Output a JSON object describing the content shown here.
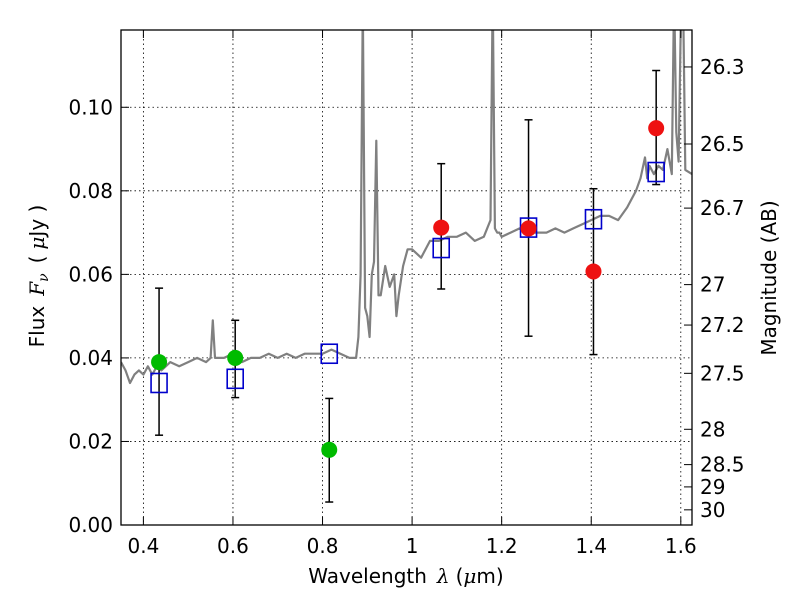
{
  "chart_data": {
    "type": "scatter",
    "xlabel": {
      "prefix": "Wavelength",
      "symbol": "λ",
      "unit_open": "(",
      "unit_mu": "μ",
      "unit_rest": "m)"
    },
    "ylabel": {
      "prefix": "Flux",
      "symbol": "F",
      "subscript": "ν",
      "unit_open": "(",
      "unit_mu": "μ",
      "unit_rest": "Jy )"
    },
    "y2label": "Magnitude (AB)",
    "xlim": [
      0.35,
      1.625
    ],
    "ylim": [
      0.0,
      0.1185
    ],
    "grid": true,
    "x_ticks": [
      {
        "value": 0.4,
        "label": "0.4"
      },
      {
        "value": 0.6,
        "label": "0.6"
      },
      {
        "value": 0.8,
        "label": "0.8"
      },
      {
        "value": 1.0,
        "label": "1"
      },
      {
        "value": 1.2,
        "label": "1.2"
      },
      {
        "value": 1.4,
        "label": "1.4"
      },
      {
        "value": 1.6,
        "label": "1.6"
      }
    ],
    "y_ticks": [
      {
        "value": 0.0,
        "label": "0.00"
      },
      {
        "value": 0.02,
        "label": "0.02"
      },
      {
        "value": 0.04,
        "label": "0.04"
      },
      {
        "value": 0.06,
        "label": "0.06"
      },
      {
        "value": 0.08,
        "label": "0.08"
      },
      {
        "value": 0.1,
        "label": "0.10"
      }
    ],
    "mag_ticks": [
      {
        "value": 26.3,
        "label": "26.3"
      },
      {
        "value": 26.5,
        "label": "26.5"
      },
      {
        "value": 26.7,
        "label": "26.7"
      },
      {
        "value": 27.0,
        "label": "27"
      },
      {
        "value": 27.2,
        "label": "27.2"
      },
      {
        "value": 27.5,
        "label": "27.5"
      },
      {
        "value": 28.0,
        "label": "28"
      },
      {
        "value": 28.5,
        "label": "28.5"
      },
      {
        "value": 29.0,
        "label": "29"
      },
      {
        "value": 30.0,
        "label": "30"
      }
    ],
    "colors": {
      "model_line": "#808080",
      "green_points": "#00bb00",
      "red_points": "#ee1111",
      "squares": "#0000cc",
      "errorbars": "#000000",
      "grid": "#000000"
    },
    "series": [
      {
        "kind": "model_spectrum",
        "x": [
          0.35,
          0.36,
          0.37,
          0.38,
          0.39,
          0.4,
          0.41,
          0.42,
          0.43,
          0.44,
          0.45,
          0.46,
          0.48,
          0.5,
          0.52,
          0.54,
          0.55,
          0.555,
          0.56,
          0.58,
          0.6,
          0.62,
          0.64,
          0.66,
          0.68,
          0.7,
          0.72,
          0.74,
          0.76,
          0.78,
          0.8,
          0.82,
          0.84,
          0.86,
          0.875,
          0.88,
          0.885,
          0.89,
          0.895,
          0.9,
          0.905,
          0.91,
          0.915,
          0.92,
          0.925,
          0.93,
          0.94,
          0.95,
          0.96,
          0.965,
          0.97,
          0.98,
          0.99,
          1.0,
          1.02,
          1.04,
          1.06,
          1.08,
          1.1,
          1.12,
          1.14,
          1.16,
          1.175,
          1.18,
          1.185,
          1.19,
          1.195,
          1.2,
          1.22,
          1.24,
          1.26,
          1.28,
          1.3,
          1.32,
          1.34,
          1.36,
          1.38,
          1.4,
          1.42,
          1.44,
          1.46,
          1.48,
          1.5,
          1.51,
          1.52,
          1.525,
          1.53,
          1.54,
          1.55,
          1.56,
          1.57,
          1.58,
          1.585,
          1.59,
          1.595,
          1.6,
          1.605,
          1.61,
          1.625
        ],
        "y": [
          0.039,
          0.037,
          0.034,
          0.036,
          0.037,
          0.036,
          0.038,
          0.036,
          0.038,
          0.037,
          0.038,
          0.039,
          0.038,
          0.039,
          0.04,
          0.039,
          0.04,
          0.049,
          0.04,
          0.04,
          0.041,
          0.039,
          0.04,
          0.04,
          0.041,
          0.04,
          0.041,
          0.04,
          0.041,
          0.041,
          0.041,
          0.042,
          0.041,
          0.04,
          0.04,
          0.045,
          0.06,
          0.125,
          0.052,
          0.05,
          0.045,
          0.06,
          0.063,
          0.092,
          0.055,
          0.055,
          0.062,
          0.057,
          0.06,
          0.05,
          0.055,
          0.062,
          0.066,
          0.066,
          0.064,
          0.068,
          0.068,
          0.069,
          0.069,
          0.07,
          0.068,
          0.069,
          0.073,
          0.128,
          0.071,
          0.07,
          0.07,
          0.069,
          0.07,
          0.071,
          0.07,
          0.07,
          0.07,
          0.071,
          0.07,
          0.071,
          0.072,
          0.073,
          0.074,
          0.074,
          0.073,
          0.076,
          0.08,
          0.083,
          0.088,
          0.083,
          0.086,
          0.084,
          0.086,
          0.085,
          0.09,
          0.084,
          0.128,
          0.094,
          0.087,
          0.12,
          0.128,
          0.085,
          0.084
        ]
      },
      {
        "kind": "observed_green",
        "x": [
          0.435,
          0.605,
          0.815
        ],
        "y": [
          0.039,
          0.04,
          0.018
        ],
        "yerr_low": [
          0.0215,
          0.0305,
          0.0055
        ],
        "yerr_high": [
          0.0567,
          0.049,
          0.0303
        ]
      },
      {
        "kind": "observed_red",
        "x": [
          1.065,
          1.26,
          1.405,
          1.545
        ],
        "y": [
          0.0712,
          0.071,
          0.0607,
          0.095
        ],
        "yerr_low": [
          0.0565,
          0.0452,
          0.0408,
          0.0815
        ],
        "yerr_high": [
          0.0865,
          0.097,
          0.0805,
          0.1088
        ]
      },
      {
        "kind": "model_squares",
        "x": [
          0.435,
          0.605,
          0.815,
          1.065,
          1.26,
          1.405,
          1.545
        ],
        "y": [
          0.034,
          0.035,
          0.041,
          0.0663,
          0.0712,
          0.0732,
          0.0845
        ]
      }
    ]
  }
}
